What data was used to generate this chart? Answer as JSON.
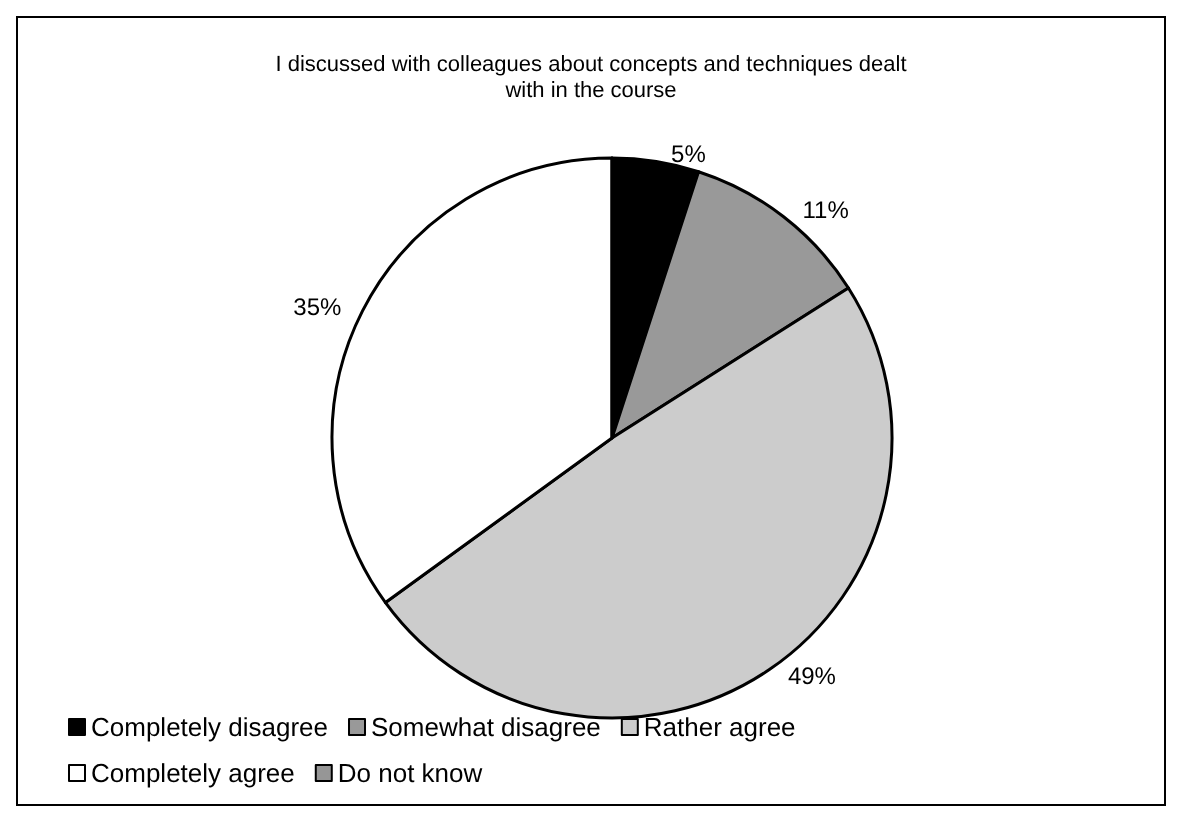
{
  "chart_data": {
    "type": "pie",
    "title": "I discussed with colleagues about concepts and techniques dealt\nwith in the course",
    "categories": [
      "Completely disagree",
      "Somewhat disagree",
      "Rather agree",
      "Completely agree",
      "Do not know"
    ],
    "values": [
      5,
      11,
      49,
      35,
      0
    ],
    "colors": [
      "#000000",
      "#999999",
      "#cccccc",
      "#ffffff",
      "#969696"
    ],
    "value_labels": [
      "5%",
      "11%",
      "49%",
      "35%",
      null
    ],
    "legend": "bottom"
  }
}
